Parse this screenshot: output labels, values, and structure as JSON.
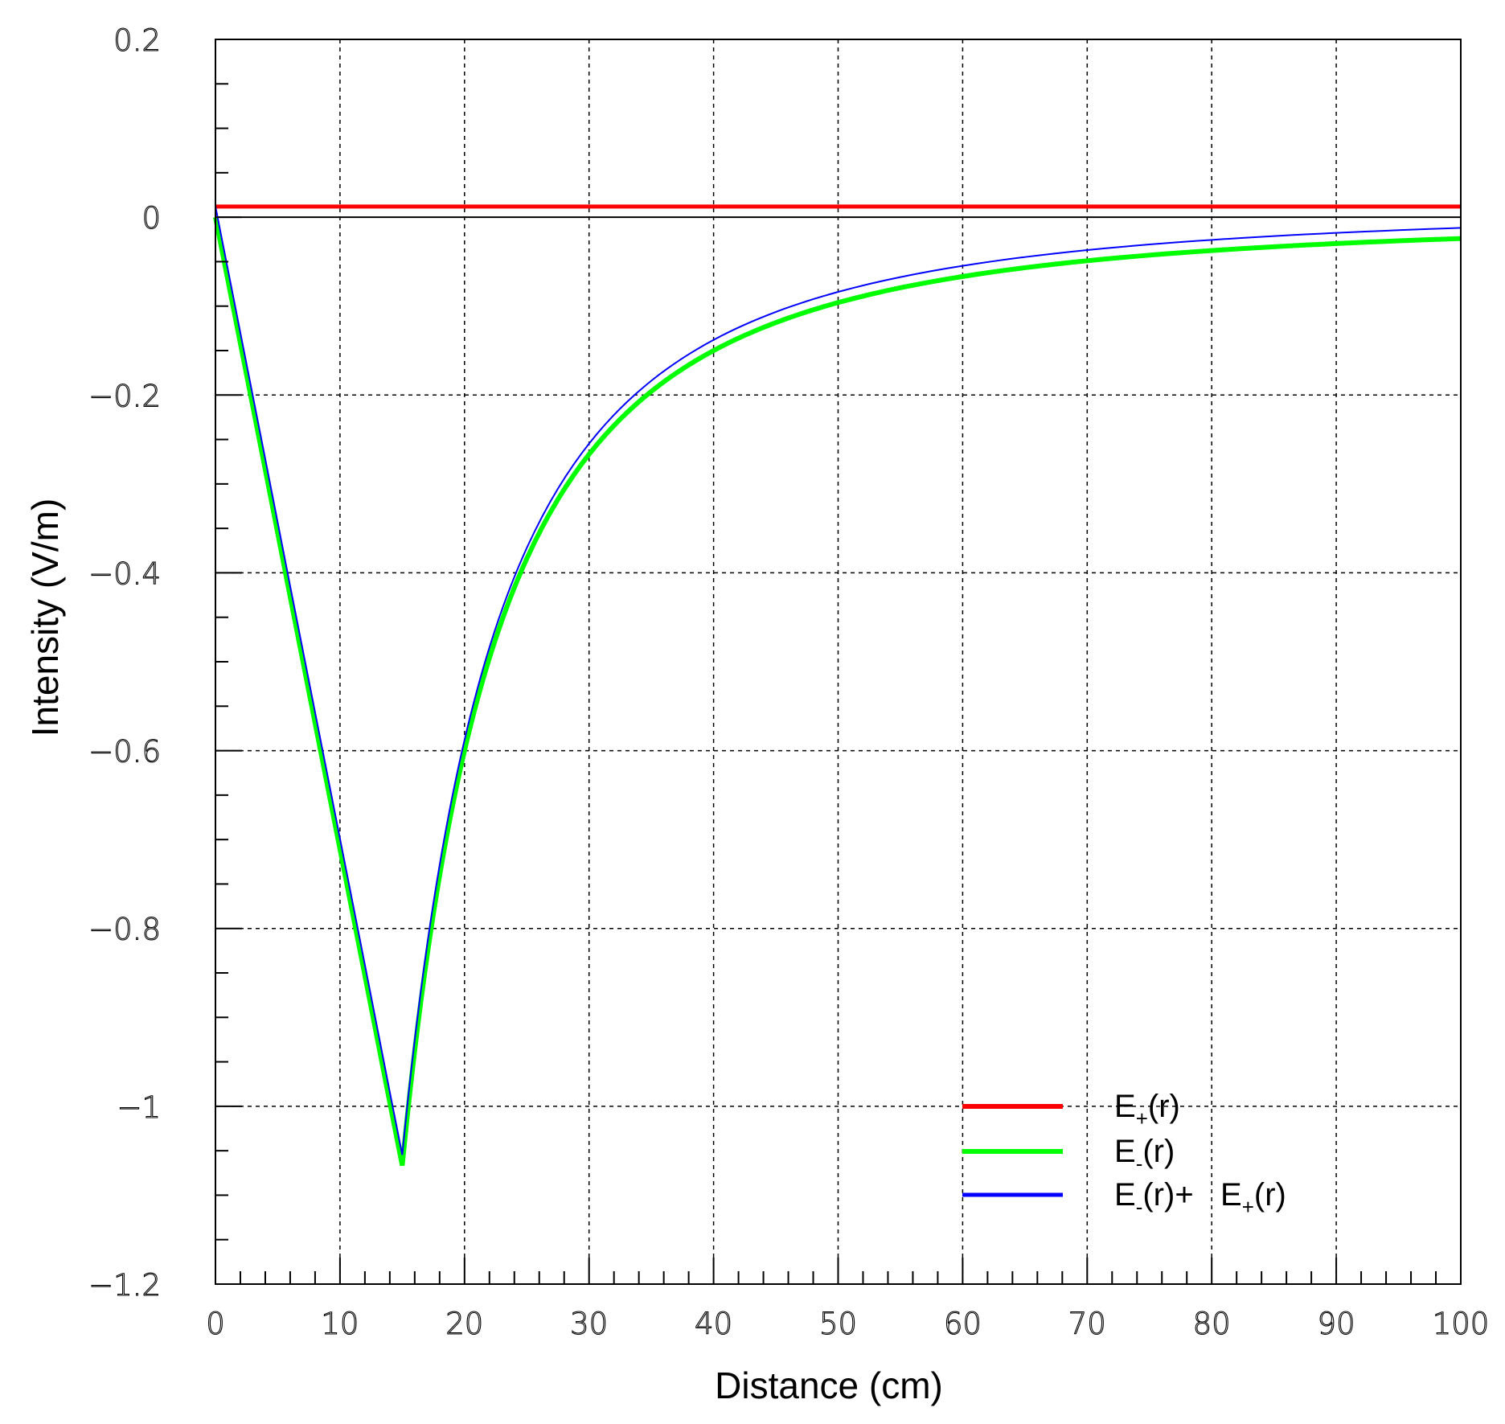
{
  "chart_data": {
    "type": "line",
    "title": "",
    "xlabel": "Distance (cm)",
    "ylabel": "Intensity (V/m)",
    "xlim": [
      0,
      100
    ],
    "ylim": [
      -1.2,
      0.2
    ],
    "grid": true,
    "x_ticks": [
      0,
      10,
      20,
      30,
      40,
      50,
      60,
      70,
      80,
      90,
      100
    ],
    "x_tick_labels": [
      "0",
      "10",
      "20",
      "30",
      "40",
      "50",
      "60",
      "70",
      "80",
      "90",
      "100"
    ],
    "y_ticks": [
      0.2,
      0,
      -0.2,
      -0.4,
      -0.6,
      -0.8,
      -1,
      -1.2
    ],
    "y_tick_labels": [
      "0.2",
      "0",
      "−0.2",
      "−0.4",
      "−0.6",
      "−0.8",
      "−1",
      "−1.2"
    ],
    "legend_position": "lower right",
    "x": [
      0,
      2,
      4,
      6,
      8,
      10,
      12,
      14,
      15,
      16,
      18,
      20,
      22,
      25,
      30,
      35,
      40,
      45,
      50,
      60,
      70,
      80,
      90,
      100
    ],
    "series": [
      {
        "name": "E+(r)",
        "label_main": "E",
        "label_sub": "+",
        "label_tail": "(r)",
        "color": "#ff0000",
        "width": 5,
        "values": [
          0.012,
          0.012,
          0.012,
          0.012,
          0.012,
          0.012,
          0.012,
          0.012,
          0.012,
          0.012,
          0.012,
          0.012,
          0.012,
          0.012,
          0.012,
          0.012,
          0.012,
          0.012,
          0.012,
          0.012,
          0.012,
          0.012,
          0.012,
          0.012
        ]
      },
      {
        "name": "E-(r)",
        "label_main": "E",
        "label_sub": "-",
        "label_tail": "(r)",
        "color": "#00ff00",
        "width": 6,
        "values": [
          0,
          -0.142,
          -0.284,
          -0.427,
          -0.569,
          -0.711,
          -0.853,
          -0.996,
          -1.08,
          -0.938,
          -0.741,
          -0.6,
          -0.496,
          -0.384,
          -0.267,
          -0.196,
          -0.15,
          -0.119,
          -0.096,
          -0.067,
          -0.049,
          -0.038,
          -0.03,
          -0.024
        ]
      },
      {
        "name": "E-(r)+ E+(r)",
        "label_main": "E",
        "label_sub": "-",
        "label_tail": "(r)+  ",
        "label_main2": "E",
        "label_sub2": "+",
        "label_tail2": "(r)",
        "color": "#0000ff",
        "width": 2,
        "values": [
          0.012,
          -0.13,
          -0.272,
          -0.415,
          -0.557,
          -0.699,
          -0.841,
          -0.984,
          -1.07,
          -0.926,
          -0.729,
          -0.588,
          -0.484,
          -0.372,
          -0.255,
          -0.184,
          -0.138,
          -0.107,
          -0.084,
          -0.055,
          -0.037,
          -0.026,
          -0.018,
          -0.012
        ]
      }
    ]
  },
  "plot": {
    "background": "#ffffff",
    "frame_color": "#000000",
    "grid_color": "#000000"
  }
}
